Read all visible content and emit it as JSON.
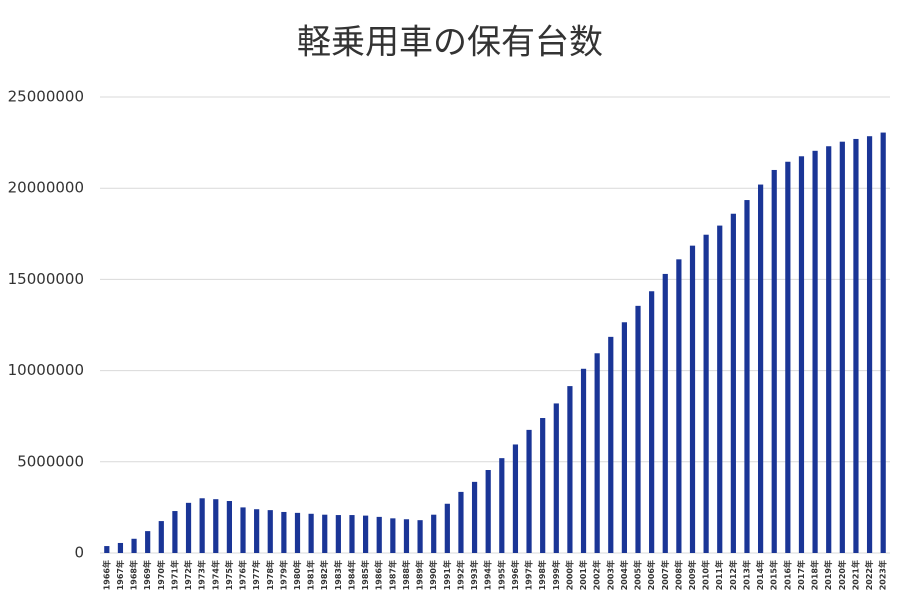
{
  "chart_data": {
    "type": "bar",
    "title": "軽乗用車の保有台数",
    "categories": [
      "1966年",
      "1967年",
      "1968年",
      "1969年",
      "1970年",
      "1971年",
      "1972年",
      "1973年",
      "1974年",
      "1975年",
      "1976年",
      "1977年",
      "1978年",
      "1979年",
      "1980年",
      "1981年",
      "1982年",
      "1983年",
      "1984年",
      "1985年",
      "1986年",
      "1987年",
      "1988年",
      "1989年",
      "1990年",
      "1991年",
      "1992年",
      "1993年",
      "1994年",
      "1995年",
      "1996年",
      "1997年",
      "1998年",
      "1999年",
      "2000年",
      "2001年",
      "2002年",
      "2003年",
      "2004年",
      "2005年",
      "2006年",
      "2007年",
      "2008年",
      "2009年",
      "2010年",
      "2011年",
      "2012年",
      "2013年",
      "2014年",
      "2015年",
      "2016年",
      "2017年",
      "2018年",
      "2019年",
      "2020年",
      "2021年",
      "2022年",
      "2023年"
    ],
    "values": [
      380000,
      550000,
      780000,
      1200000,
      1750000,
      2300000,
      2750000,
      3000000,
      2950000,
      2850000,
      2500000,
      2400000,
      2350000,
      2250000,
      2200000,
      2150000,
      2100000,
      2080000,
      2080000,
      2050000,
      1980000,
      1900000,
      1850000,
      1800000,
      2100000,
      2700000,
      3350000,
      3900000,
      4550000,
      5200000,
      5950000,
      6750000,
      7400000,
      8200000,
      9150000,
      10100000,
      10950000,
      11850000,
      12650000,
      13550000,
      14350000,
      15300000,
      16100000,
      16850000,
      17450000,
      17950000,
      18600000,
      19350000,
      20200000,
      21000000,
      21450000,
      21750000,
      22050000,
      22300000,
      22550000,
      22700000,
      22850000,
      23050000
    ],
    "color": "#1a3596",
    "ylim": [
      0,
      25000000
    ],
    "yticks": [
      0,
      5000000,
      10000000,
      15000000,
      20000000,
      25000000
    ],
    "grid": true
  }
}
